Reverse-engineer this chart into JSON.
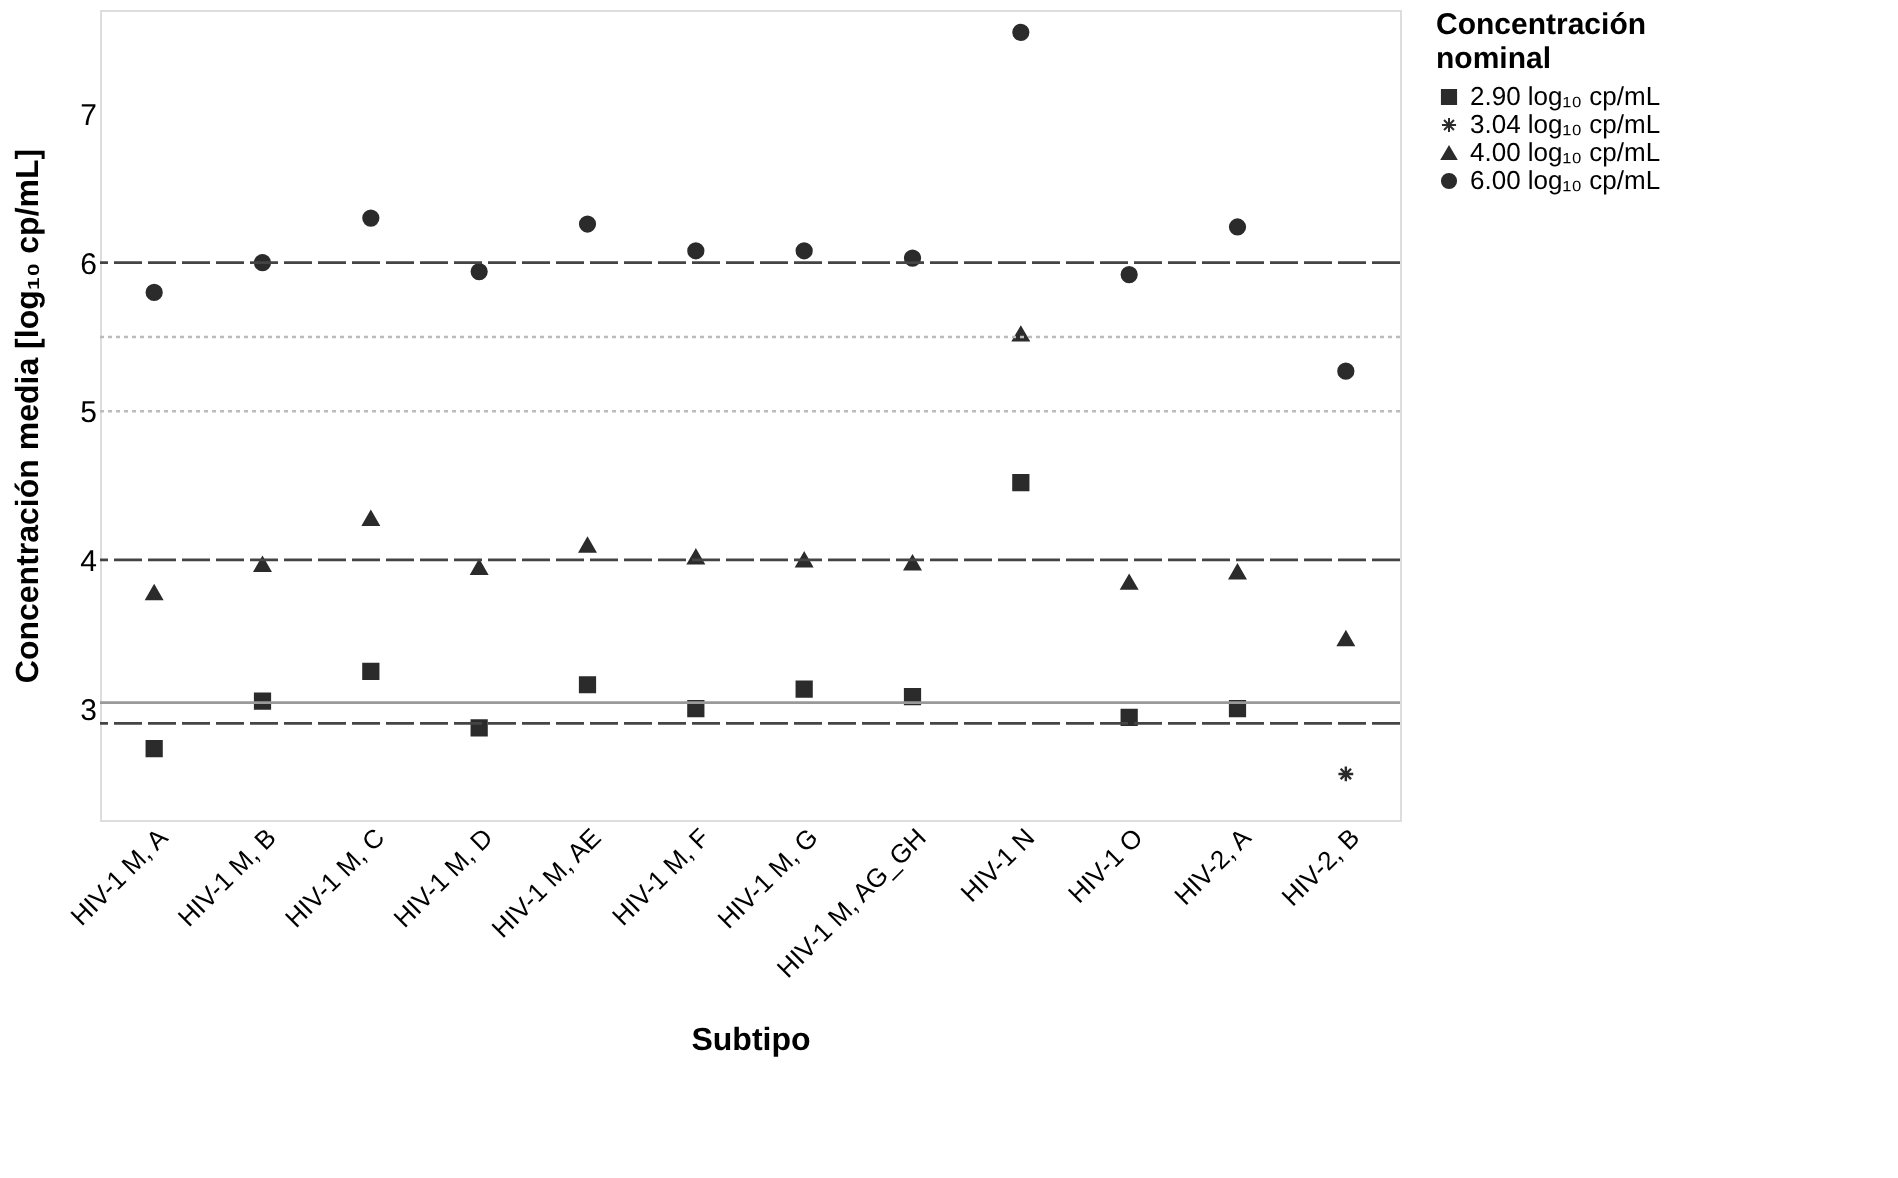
{
  "chart_data": {
    "type": "scatter",
    "xlabel": "Subtipo",
    "ylabel": "Concentración media [log₁₀ cp/mL]",
    "legend_title": "Concentración nominal",
    "categories": [
      "HIV-1 M, A",
      "HIV-1 M, B",
      "HIV-1 M, C",
      "HIV-1 M, D",
      "HIV-1 M, AE",
      "HIV-1 M, F",
      "HIV-1 M, G",
      "HIV-1 M, AG_GH",
      "HIV-1 N",
      "HIV-1 O",
      "HIV-2, A",
      "HIV-2, B"
    ],
    "series": [
      {
        "name": "2.90 log₁₀ cp/mL",
        "color": "#2b2b2b",
        "marker": "square",
        "values": [
          2.73,
          3.05,
          3.25,
          2.87,
          3.16,
          3.0,
          3.13,
          3.08,
          4.52,
          2.94,
          3.0,
          null
        ]
      },
      {
        "name": "3.04 log₁₀ cp/mL",
        "color": "#2b2b2b",
        "marker": "cross",
        "values": [
          null,
          null,
          null,
          null,
          null,
          null,
          null,
          null,
          null,
          null,
          null,
          2.56
        ]
      },
      {
        "name": "4.00 log₁₀ cp/mL",
        "color": "#2b2b2b",
        "marker": "triangle",
        "values": [
          3.78,
          3.97,
          4.28,
          3.95,
          4.1,
          4.02,
          4.0,
          3.98,
          5.52,
          3.85,
          3.92,
          3.47
        ]
      },
      {
        "name": "6.00 log₁₀ cp/mL",
        "color": "#2b2b2b",
        "marker": "circle",
        "values": [
          5.8,
          6.0,
          6.3,
          5.94,
          6.26,
          6.08,
          6.08,
          6.03,
          7.55,
          5.92,
          6.24,
          5.27
        ]
      }
    ],
    "ylim": [
      2.25,
      7.7
    ],
    "yticks": [
      3,
      4,
      5,
      6,
      7
    ],
    "grid": false,
    "legend": "right",
    "ref_lines": [
      {
        "axis": "y",
        "value": 6.0,
        "color": "#444444",
        "line_style": "dashed"
      },
      {
        "axis": "y",
        "value": 5.5,
        "color": "#bbbbbb",
        "line_style": "dotted"
      },
      {
        "axis": "y",
        "value": 5.0,
        "color": "#bbbbbb",
        "line_style": "dotted"
      },
      {
        "axis": "y",
        "value": 4.0,
        "color": "#444444",
        "line_style": "dashed"
      },
      {
        "axis": "y",
        "value": 2.9,
        "color": "#444444",
        "line_style": "dashed"
      },
      {
        "axis": "y",
        "value": 3.04,
        "color": "#999999",
        "line_style": "solid"
      }
    ]
  }
}
